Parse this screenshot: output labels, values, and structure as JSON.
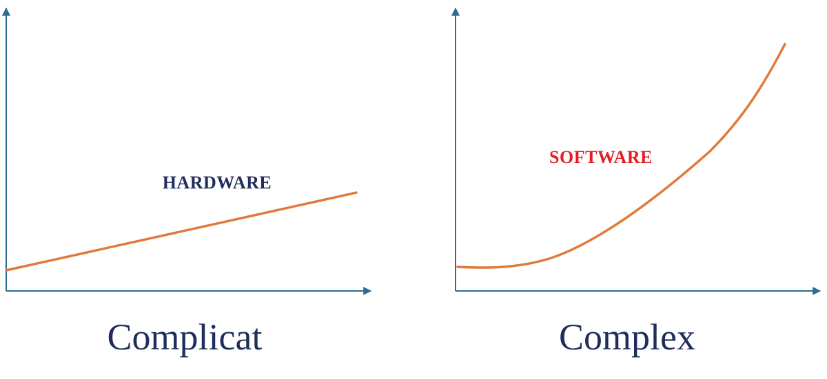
{
  "left": {
    "label": "HARDWARE",
    "caption": "Complicat"
  },
  "right": {
    "label": "SOFTWARE",
    "caption": "Complex"
  }
}
